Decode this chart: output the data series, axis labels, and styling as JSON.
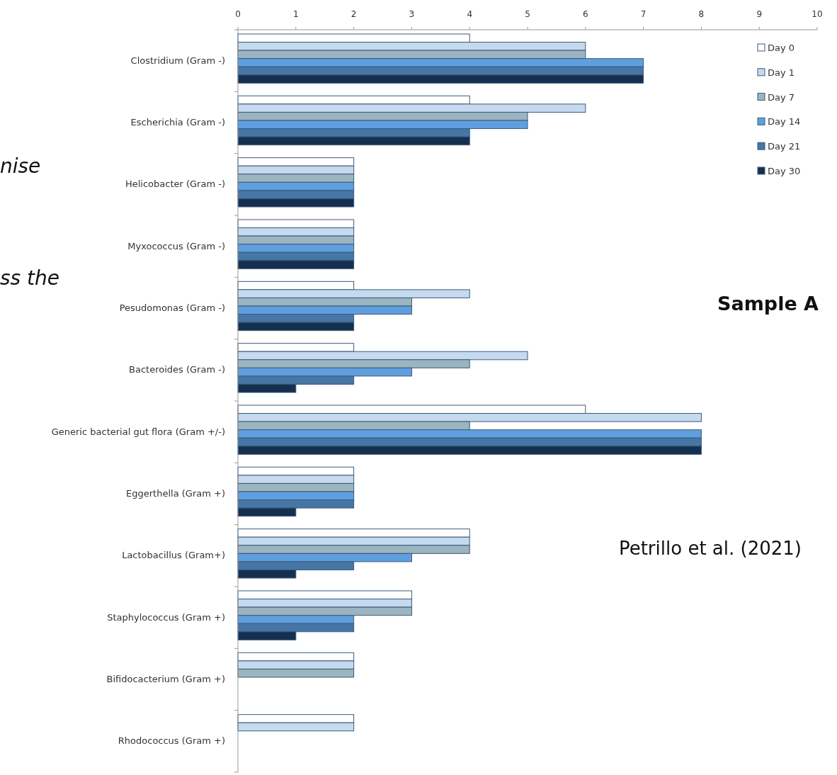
{
  "chart_data": {
    "type": "bar",
    "orientation": "horizontal",
    "categories": [
      "Clostridium (Gram -)",
      "Escherichia (Gram -)",
      "Helicobacter (Gram -)",
      "Myxococcus (Gram -)",
      "Pesudomonas (Gram -)",
      "Bacteroides (Gram -)",
      "Generic bacterial gut flora (Gram +/-)",
      "Eggerthella (Gram +)",
      "Lactobacillus (Gram+)",
      "Staphylococcus (Gram +)",
      "Bifidocacterium (Gram +)",
      "Rhodococcus (Gram +)"
    ],
    "series": [
      {
        "name": "Day 0",
        "color": "#ffffff",
        "values": [
          4,
          4,
          2,
          2,
          2,
          2,
          6,
          2,
          4,
          3,
          2,
          2
        ]
      },
      {
        "name": "Day 1",
        "color": "#c5d9ef",
        "values": [
          6,
          6,
          2,
          2,
          4,
          5,
          8,
          2,
          4,
          3,
          2,
          2
        ]
      },
      {
        "name": "Day 7",
        "color": "#9bb5c0",
        "values": [
          6,
          5,
          2,
          2,
          3,
          4,
          4,
          2,
          4,
          3,
          2,
          null
        ]
      },
      {
        "name": "Day 14",
        "color": "#5f9fdf",
        "values": [
          7,
          5,
          2,
          2,
          3,
          3,
          8,
          2,
          3,
          2,
          null,
          null
        ]
      },
      {
        "name": "Day 21",
        "color": "#4576a6",
        "values": [
          7,
          4,
          2,
          2,
          2,
          2,
          8,
          2,
          2,
          2,
          null,
          null
        ]
      },
      {
        "name": "Day 30",
        "color": "#15304f",
        "values": [
          7,
          4,
          2,
          2,
          2,
          1,
          8,
          1,
          1,
          1,
          null,
          null
        ]
      }
    ],
    "xlim": [
      0,
      10
    ],
    "xticks": [
      0,
      1,
      2,
      3,
      4,
      5,
      6,
      7,
      8,
      9,
      10
    ],
    "grid": false,
    "legend": "top right",
    "annotations": [
      "Sample A",
      "Petrillo et al. (2021)",
      "nise",
      "ss the"
    ]
  }
}
